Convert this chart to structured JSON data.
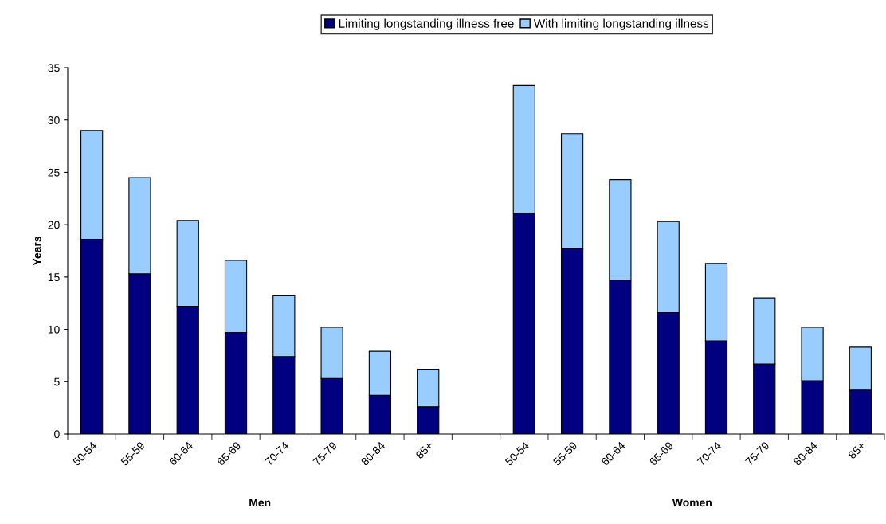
{
  "chart_data": {
    "type": "bar",
    "stacked": true,
    "ylabel": "Years",
    "categories": [
      "50-54",
      "55-59",
      "60-64",
      "65-69",
      "70-74",
      "75-79",
      "80-84",
      "85+",
      null,
      "50-54",
      "55-59",
      "60-64",
      "65-69",
      "70-74",
      "75-79",
      "80-84",
      "85+"
    ],
    "series": [
      {
        "name": "Limiting longstanding illness free",
        "color": "#000080",
        "values": [
          18.6,
          15.3,
          12.2,
          9.7,
          7.4,
          5.3,
          3.7,
          2.6,
          null,
          21.1,
          17.7,
          14.7,
          11.6,
          8.9,
          6.7,
          5.1,
          4.2
        ]
      },
      {
        "name": "With limiting longstanding illness",
        "color": "#99ccff",
        "values": [
          10.4,
          9.2,
          8.2,
          6.9,
          5.8,
          4.9,
          4.2,
          3.6,
          null,
          12.2,
          11.0,
          9.6,
          8.7,
          7.4,
          6.3,
          5.1,
          4.1
        ]
      }
    ],
    "ylim": [
      0,
      35
    ],
    "yticks": [
      0,
      5,
      10,
      15,
      20,
      25,
      30,
      35
    ],
    "grid": false,
    "legend": "top",
    "annotations": [
      "Men",
      "Women"
    ]
  }
}
